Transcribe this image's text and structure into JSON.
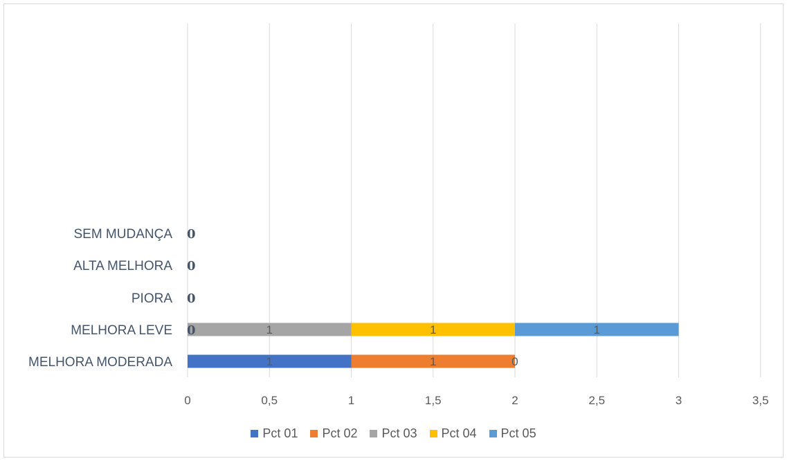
{
  "chart_data": {
    "type": "bar",
    "orientation": "horizontal",
    "stacked": true,
    "title": "",
    "xlabel": "",
    "ylabel": "",
    "categories": [
      "MELHORA MODERADA",
      "MELHORA LEVE",
      "PIORA",
      "ALTA MELHORA",
      "SEM MUDANÇA"
    ],
    "xlim": [
      0,
      3.5
    ],
    "x_ticks": [
      "0",
      "0,5",
      "1",
      "1,5",
      "2",
      "2,5",
      "3",
      "3,5"
    ],
    "x_tick_values": [
      0,
      0.5,
      1,
      1.5,
      2,
      2.5,
      3,
      3.5
    ],
    "grid": true,
    "legend_position": "bottom",
    "series": [
      {
        "name": "Pct 01",
        "color": "#4472c4",
        "values": [
          1,
          null,
          null,
          null,
          null
        ],
        "labels": [
          "1",
          "",
          "",
          "",
          ""
        ]
      },
      {
        "name": "Pct 02",
        "color": "#ed7d31",
        "values": [
          1,
          null,
          null,
          null,
          null
        ],
        "labels": [
          "1",
          "",
          "",
          "",
          ""
        ]
      },
      {
        "name": "Pct 03",
        "color": "#a5a5a5",
        "values": [
          0,
          1,
          null,
          null,
          null
        ],
        "labels": [
          "0",
          "1",
          "",
          "",
          ""
        ]
      },
      {
        "name": "Pct 04",
        "color": "#ffc000",
        "values": [
          null,
          1,
          null,
          null,
          null
        ],
        "labels": [
          "",
          "1",
          "",
          "",
          ""
        ]
      },
      {
        "name": "Pct 05",
        "color": "#5b9bd5",
        "values": [
          null,
          1,
          null,
          null,
          null
        ],
        "labels": [
          "",
          "1",
          "",
          "",
          ""
        ]
      }
    ],
    "extra_labels": [
      {
        "category": "MELHORA LEVE",
        "text": "0",
        "at": 0
      },
      {
        "category": "PIORA",
        "text": "0",
        "at": 0
      },
      {
        "category": "ALTA MELHORA",
        "text": "0",
        "at": 0
      },
      {
        "category": "SEM MUDANÇA",
        "text": "0",
        "at": 0
      }
    ]
  }
}
